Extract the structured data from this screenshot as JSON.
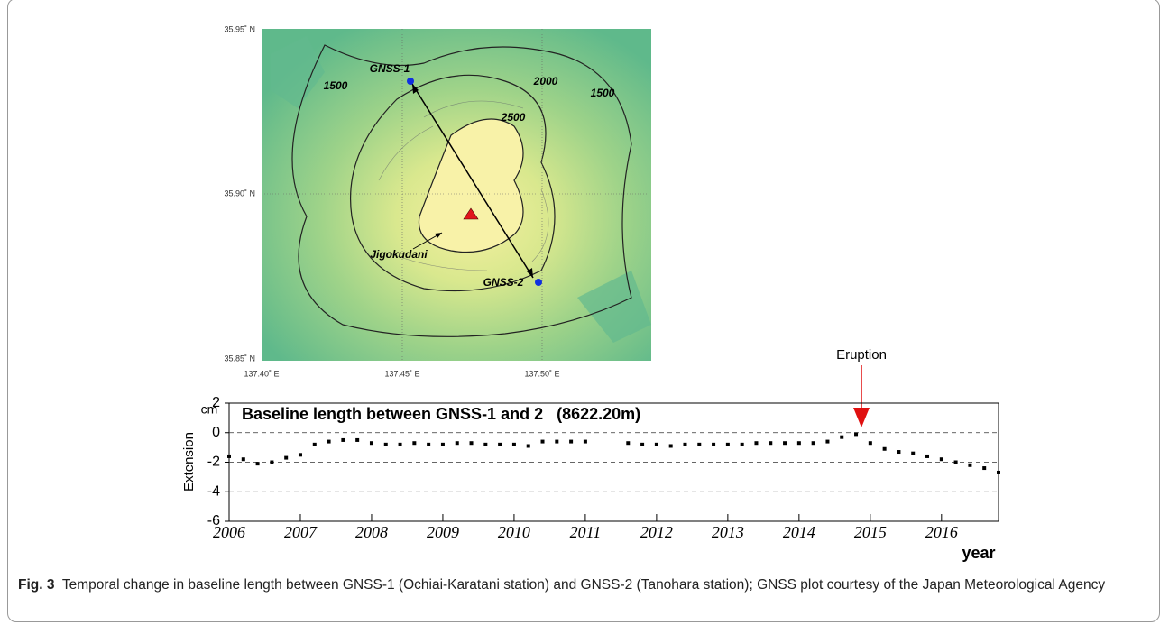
{
  "map": {
    "lat_labels": [
      "35.95˚ N",
      "35.90˚ N",
      "35.85˚ N"
    ],
    "lon_labels": [
      "137.40˚ E",
      "137.45˚ E",
      "137.50˚ E"
    ],
    "contour_labels": [
      "1500",
      "2000",
      "1500",
      "2500"
    ],
    "stations": [
      "GNSS-1",
      "GNSS-2"
    ],
    "place": "Jigokudani"
  },
  "annotation": "Eruption",
  "chart_data": {
    "type": "scatter",
    "title": "Baseline length between GNSS-1 and 2   (8622.20m)",
    "y_unit": "cm",
    "y_label": "Extension",
    "x_label": "year",
    "color": "#000000",
    "grid": "dashed",
    "xlim": [
      2006,
      2016.8
    ],
    "xticks": [
      2006,
      2007,
      2008,
      2009,
      2010,
      2011,
      2012,
      2013,
      2014,
      2015,
      2016
    ],
    "ylim": [
      -6,
      2
    ],
    "yticks": [
      2,
      0,
      -2,
      -4,
      -6
    ],
    "x": [
      2006.0,
      2006.2,
      2006.4,
      2006.6,
      2006.8,
      2007.0,
      2007.2,
      2007.4,
      2007.6,
      2007.8,
      2008.0,
      2008.2,
      2008.4,
      2008.6,
      2008.8,
      2009.0,
      2009.2,
      2009.4,
      2009.6,
      2009.8,
      2010.0,
      2010.2,
      2010.4,
      2010.6,
      2010.8,
      2011.0,
      2011.6,
      2011.8,
      2012.0,
      2012.2,
      2012.4,
      2012.6,
      2012.8,
      2013.0,
      2013.2,
      2013.4,
      2013.6,
      2013.8,
      2014.0,
      2014.2,
      2014.4,
      2014.6,
      2014.8,
      2015.0,
      2015.2,
      2015.4,
      2015.6,
      2015.8,
      2016.0,
      2016.2,
      2016.4,
      2016.6,
      2016.8
    ],
    "values": [
      -1.6,
      -1.8,
      -2.1,
      -2.0,
      -1.7,
      -1.5,
      -0.8,
      -0.6,
      -0.5,
      -0.5,
      -0.7,
      -0.8,
      -0.8,
      -0.7,
      -0.8,
      -0.8,
      -0.7,
      -0.7,
      -0.8,
      -0.8,
      -0.8,
      -0.9,
      -0.6,
      -0.6,
      -0.6,
      -0.6,
      -0.7,
      -0.8,
      -0.8,
      -0.9,
      -0.8,
      -0.8,
      -0.8,
      -0.8,
      -0.8,
      -0.7,
      -0.7,
      -0.7,
      -0.7,
      -0.7,
      -0.6,
      -0.3,
      -0.1,
      -0.7,
      -1.1,
      -1.3,
      -1.4,
      -1.6,
      -1.8,
      -2.0,
      -2.2,
      -2.4,
      -2.7
    ]
  },
  "figure": {
    "label": "Fig. 3",
    "caption": "Temporal change in baseline length between GNSS-1 (Ochiai-Karatani station) and GNSS-2 (Tanohara station); GNSS plot courtesy of the Japan Meteorological Agency"
  }
}
